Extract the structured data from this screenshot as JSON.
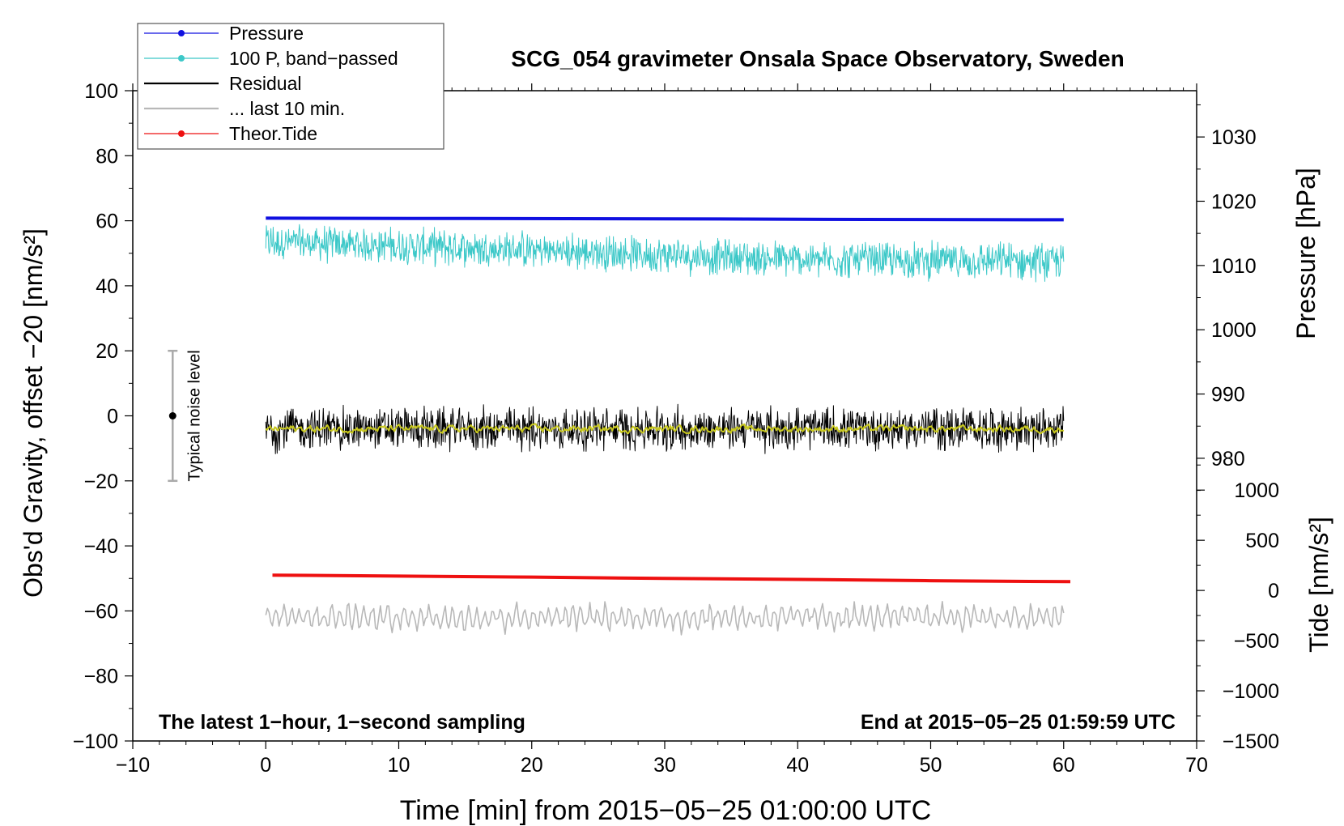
{
  "chart_data": {
    "type": "line",
    "title": "SCG_054 gravimeter Onsala Space Observatory, Sweden",
    "xlabel": "Time [min] from 2015−05−25 01:00:00 UTC",
    "ylabel_left": "Obs'd Gravity, offset −20 [nm/s²]",
    "ylabel_pressure": "Pressure [hPa]",
    "ylabel_tide": "Tide [nm/s²]",
    "xlim": [
      -10,
      70
    ],
    "ylim_left": [
      -100,
      100
    ],
    "x_ticks": [
      -10,
      0,
      10,
      20,
      30,
      40,
      50,
      60,
      70
    ],
    "x_tick_labels": [
      "−10",
      "0",
      "10",
      "20",
      "30",
      "40",
      "50",
      "60",
      "70"
    ],
    "y_ticks_left": [
      -100,
      -80,
      -60,
      -40,
      -20,
      0,
      20,
      40,
      60,
      80,
      100
    ],
    "y_tick_labels_left": [
      "−100",
      "−80",
      "−60",
      "−40",
      "−20",
      "0",
      "20",
      "40",
      "60",
      "80",
      "100"
    ],
    "pressure_axis": {
      "left_value_range": [
        16,
        100
      ],
      "hPa_range": [
        994.7,
        1037.2
      ],
      "ticks": [
        980,
        990,
        1000,
        1010,
        1020,
        1030
      ],
      "tick_labels": [
        "980",
        "990",
        "1000",
        "1010",
        "1020",
        "1030"
      ]
    },
    "tide_axis": {
      "left_value_range": [
        -100,
        0
      ],
      "tide_range": [
        -1500,
        1740
      ],
      "ticks": [
        -1500,
        -1000,
        -500,
        0,
        500,
        1000
      ],
      "tick_labels": [
        "−1500",
        "−1000",
        "−500",
        "0",
        "500",
        "1000"
      ]
    },
    "legend": {
      "placement": "top-left",
      "entries": [
        {
          "label": "Pressure",
          "color": "#1010e0",
          "marker": true
        },
        {
          "label": "100 P, band−passed",
          "color": "#3cc8c8",
          "marker": true
        },
        {
          "label": "Residual",
          "color": "#000000",
          "marker": false
        },
        {
          "label": "... last 10 min.",
          "color": "#b8b8b8",
          "marker": false
        },
        {
          "label": "Theor.Tide",
          "color": "#ee1010",
          "marker": true
        }
      ]
    },
    "series": [
      {
        "name": "Pressure",
        "color": "#1010e0",
        "x": [
          0,
          15,
          30,
          45,
          60
        ],
        "y": [
          60.8,
          60.7,
          60.6,
          60.4,
          60.3
        ],
        "style": "thick"
      },
      {
        "name": "100 P, band−passed",
        "color": "#3cc8c8",
        "x_range": [
          0,
          60
        ],
        "trend": [
          [
            0,
            53.5
          ],
          [
            20,
            51
          ],
          [
            40,
            48
          ],
          [
            60,
            47.5
          ]
        ],
        "amplitude": 4.5,
        "style": "noisy"
      },
      {
        "name": "Residual",
        "color": "#000000",
        "x_range": [
          0,
          60
        ],
        "trend": [
          [
            0,
            -4
          ],
          [
            60,
            -4
          ]
        ],
        "amplitude": 5.5,
        "style": "noisy"
      },
      {
        "name": "Residual (smoothed)",
        "color": "#c8c81e",
        "x_range": [
          0,
          60
        ],
        "trend": [
          [
            0,
            -4
          ],
          [
            60,
            -4
          ]
        ],
        "amplitude": 0.8,
        "style": "smooth-noisy"
      },
      {
        "name": "... last 10 min.",
        "color": "#b8b8b8",
        "x_range": [
          0,
          60
        ],
        "trend": [
          [
            0,
            -62
          ],
          [
            60,
            -62
          ]
        ],
        "amplitude": 4,
        "style": "wavy"
      },
      {
        "name": "Theor.Tide",
        "color": "#ee1010",
        "x": [
          0.5,
          10,
          20,
          30,
          40,
          50,
          60.5
        ],
        "y": [
          -49,
          -49.3,
          -49.6,
          -50,
          -50.3,
          -50.7,
          -51
        ],
        "style": "thick"
      }
    ],
    "noise_bar": {
      "label": "Typical noise level",
      "x": -7,
      "y": 0,
      "range": [
        -20,
        20
      ]
    },
    "annotations": {
      "bottom_left": "The latest 1−hour, 1−second sampling",
      "bottom_right": "End at 2015−05−25 01:59:59 UTC"
    }
  }
}
